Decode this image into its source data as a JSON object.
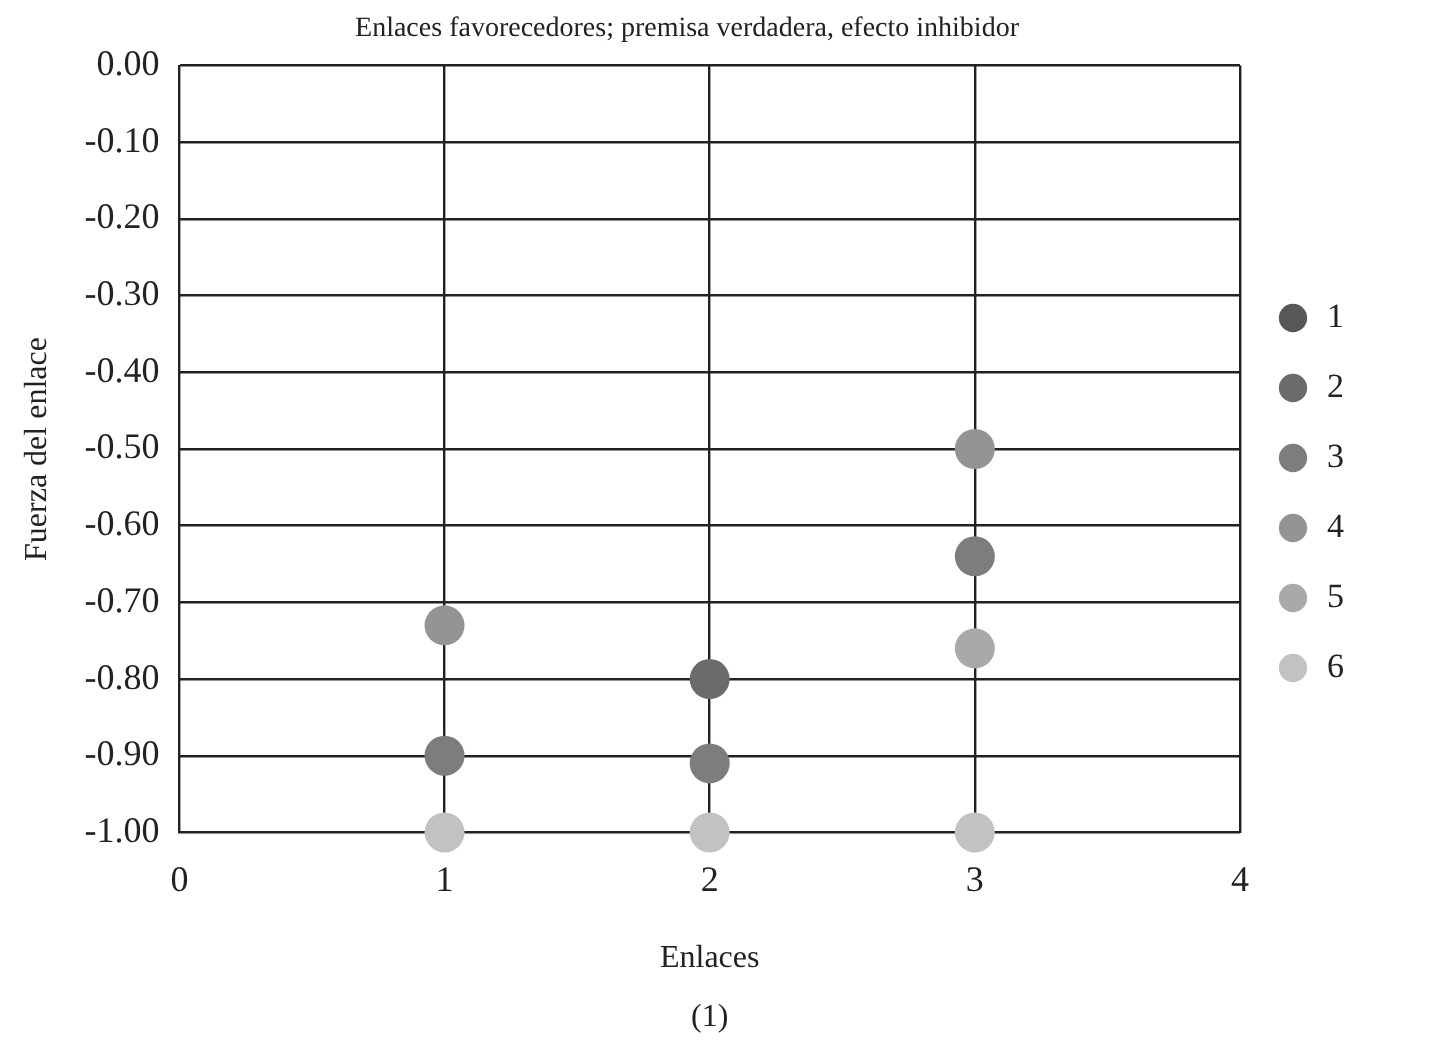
{
  "chart_data": {
    "type": "scatter",
    "title": "Enlaces favorecedores; premisa verdadera, efecto inhibidor",
    "xlabel": "Enlaces",
    "ylabel": "Fuerza del enlace",
    "annotations": [
      "(1)"
    ],
    "x": [
      1,
      2,
      3
    ],
    "series": [
      {
        "name": "1",
        "color": "#575757",
        "values": [
          null,
          null,
          null
        ]
      },
      {
        "name": "2",
        "color": "#6b6b6d",
        "values": [
          null,
          -0.8,
          null
        ]
      },
      {
        "name": "3",
        "color": "#7d7d7f",
        "values": [
          -0.9,
          -0.91,
          -0.64
        ]
      },
      {
        "name": "4",
        "color": "#949496",
        "values": [
          -0.73,
          null,
          -0.5
        ]
      },
      {
        "name": "5",
        "color": "#a9a9ab",
        "values": [
          null,
          null,
          -0.76
        ]
      },
      {
        "name": "6",
        "color": "#c2c2c4",
        "values": [
          -1.0,
          -1.0,
          -1.0
        ]
      }
    ],
    "xlim": [
      0,
      4
    ],
    "xticks": [
      0,
      1,
      2,
      3,
      4
    ],
    "ylim": [
      -1,
      0
    ],
    "yticks": [
      {
        "value": 0,
        "label": "0.00"
      },
      {
        "value": -0.1,
        "label": "-0.10"
      },
      {
        "value": -0.2,
        "label": "-0.20"
      },
      {
        "value": -0.3,
        "label": "-0.30"
      },
      {
        "value": -0.4,
        "label": "-0.40"
      },
      {
        "value": -0.5,
        "label": "-0.50"
      },
      {
        "value": -0.6,
        "label": "-0.60"
      },
      {
        "value": -0.7,
        "label": "-0.70"
      },
      {
        "value": -0.8,
        "label": "-0.80"
      },
      {
        "value": -0.9,
        "label": "-0.90"
      },
      {
        "value": -1,
        "label": "-1.00"
      }
    ],
    "grid": true,
    "legend": "right",
    "marker": "circle"
  }
}
